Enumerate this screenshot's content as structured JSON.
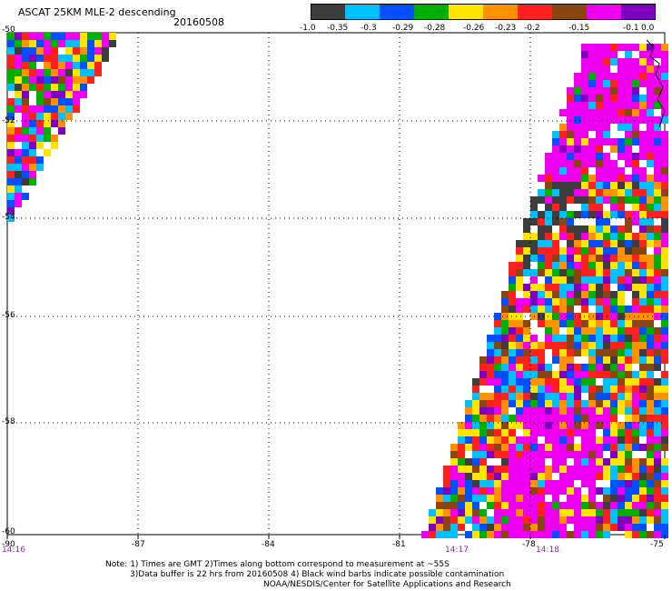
{
  "header": {
    "title": "ASCAT 25KM MLE-2 descending",
    "date": "20160508"
  },
  "colorbar": {
    "colors": [
      "#3c3c3c",
      "#00bfff",
      "#0050ff",
      "#00b000",
      "#ffe400",
      "#ff9000",
      "#ff2020",
      "#8b4513",
      "#f000f0",
      "#8000c0"
    ],
    "labels": [
      "-1.0",
      "-0.35",
      "-0.3",
      "-0.29",
      "-0.28",
      "-0.26",
      "-0.23",
      "-0.2",
      "-0.15",
      "-0.1",
      "0.0"
    ]
  },
  "map": {
    "lat_labels": [
      "-50",
      "-52",
      "-54",
      "-56",
      "-58",
      "-60"
    ],
    "lon_labels": [
      "-90",
      "-87",
      "-84",
      "-81",
      "-78",
      "-75"
    ],
    "time_labels": [
      "14:16",
      "14:17",
      "14:18"
    ]
  },
  "notes": {
    "line1": "Note: 1) Times are GMT 2)Times along bottom correspond to measurement at ~55S",
    "line2": "3)Data buffer is 22 hrs from 20160508 4) Black wind barbs indicate possible contamination",
    "line3": "NOAA/NESDIS/Center for Satellite Applications and Research"
  }
}
